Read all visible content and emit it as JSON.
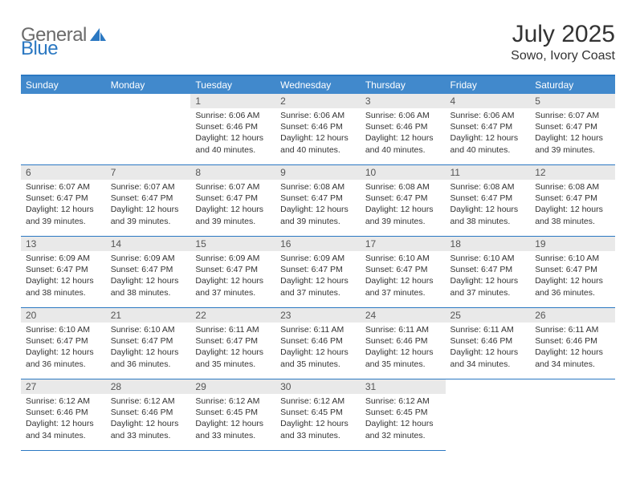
{
  "brand": {
    "part1": "General",
    "part2": "Blue"
  },
  "title": "July 2025",
  "location": "Sowo, Ivory Coast",
  "colors": {
    "accent": "#2b78c2",
    "header_bg": "#4189cc",
    "daynum_bg": "#e9e9e9",
    "text": "#333333"
  },
  "day_headers": [
    "Sunday",
    "Monday",
    "Tuesday",
    "Wednesday",
    "Thursday",
    "Friday",
    "Saturday"
  ],
  "weeks": [
    [
      null,
      null,
      {
        "n": "1",
        "sr": "Sunrise: 6:06 AM",
        "ss": "Sunset: 6:46 PM",
        "dl": "Daylight: 12 hours and 40 minutes."
      },
      {
        "n": "2",
        "sr": "Sunrise: 6:06 AM",
        "ss": "Sunset: 6:46 PM",
        "dl": "Daylight: 12 hours and 40 minutes."
      },
      {
        "n": "3",
        "sr": "Sunrise: 6:06 AM",
        "ss": "Sunset: 6:46 PM",
        "dl": "Daylight: 12 hours and 40 minutes."
      },
      {
        "n": "4",
        "sr": "Sunrise: 6:06 AM",
        "ss": "Sunset: 6:47 PM",
        "dl": "Daylight: 12 hours and 40 minutes."
      },
      {
        "n": "5",
        "sr": "Sunrise: 6:07 AM",
        "ss": "Sunset: 6:47 PM",
        "dl": "Daylight: 12 hours and 39 minutes."
      }
    ],
    [
      {
        "n": "6",
        "sr": "Sunrise: 6:07 AM",
        "ss": "Sunset: 6:47 PM",
        "dl": "Daylight: 12 hours and 39 minutes."
      },
      {
        "n": "7",
        "sr": "Sunrise: 6:07 AM",
        "ss": "Sunset: 6:47 PM",
        "dl": "Daylight: 12 hours and 39 minutes."
      },
      {
        "n": "8",
        "sr": "Sunrise: 6:07 AM",
        "ss": "Sunset: 6:47 PM",
        "dl": "Daylight: 12 hours and 39 minutes."
      },
      {
        "n": "9",
        "sr": "Sunrise: 6:08 AM",
        "ss": "Sunset: 6:47 PM",
        "dl": "Daylight: 12 hours and 39 minutes."
      },
      {
        "n": "10",
        "sr": "Sunrise: 6:08 AM",
        "ss": "Sunset: 6:47 PM",
        "dl": "Daylight: 12 hours and 39 minutes."
      },
      {
        "n": "11",
        "sr": "Sunrise: 6:08 AM",
        "ss": "Sunset: 6:47 PM",
        "dl": "Daylight: 12 hours and 38 minutes."
      },
      {
        "n": "12",
        "sr": "Sunrise: 6:08 AM",
        "ss": "Sunset: 6:47 PM",
        "dl": "Daylight: 12 hours and 38 minutes."
      }
    ],
    [
      {
        "n": "13",
        "sr": "Sunrise: 6:09 AM",
        "ss": "Sunset: 6:47 PM",
        "dl": "Daylight: 12 hours and 38 minutes."
      },
      {
        "n": "14",
        "sr": "Sunrise: 6:09 AM",
        "ss": "Sunset: 6:47 PM",
        "dl": "Daylight: 12 hours and 38 minutes."
      },
      {
        "n": "15",
        "sr": "Sunrise: 6:09 AM",
        "ss": "Sunset: 6:47 PM",
        "dl": "Daylight: 12 hours and 37 minutes."
      },
      {
        "n": "16",
        "sr": "Sunrise: 6:09 AM",
        "ss": "Sunset: 6:47 PM",
        "dl": "Daylight: 12 hours and 37 minutes."
      },
      {
        "n": "17",
        "sr": "Sunrise: 6:10 AM",
        "ss": "Sunset: 6:47 PM",
        "dl": "Daylight: 12 hours and 37 minutes."
      },
      {
        "n": "18",
        "sr": "Sunrise: 6:10 AM",
        "ss": "Sunset: 6:47 PM",
        "dl": "Daylight: 12 hours and 37 minutes."
      },
      {
        "n": "19",
        "sr": "Sunrise: 6:10 AM",
        "ss": "Sunset: 6:47 PM",
        "dl": "Daylight: 12 hours and 36 minutes."
      }
    ],
    [
      {
        "n": "20",
        "sr": "Sunrise: 6:10 AM",
        "ss": "Sunset: 6:47 PM",
        "dl": "Daylight: 12 hours and 36 minutes."
      },
      {
        "n": "21",
        "sr": "Sunrise: 6:10 AM",
        "ss": "Sunset: 6:47 PM",
        "dl": "Daylight: 12 hours and 36 minutes."
      },
      {
        "n": "22",
        "sr": "Sunrise: 6:11 AM",
        "ss": "Sunset: 6:47 PM",
        "dl": "Daylight: 12 hours and 35 minutes."
      },
      {
        "n": "23",
        "sr": "Sunrise: 6:11 AM",
        "ss": "Sunset: 6:46 PM",
        "dl": "Daylight: 12 hours and 35 minutes."
      },
      {
        "n": "24",
        "sr": "Sunrise: 6:11 AM",
        "ss": "Sunset: 6:46 PM",
        "dl": "Daylight: 12 hours and 35 minutes."
      },
      {
        "n": "25",
        "sr": "Sunrise: 6:11 AM",
        "ss": "Sunset: 6:46 PM",
        "dl": "Daylight: 12 hours and 34 minutes."
      },
      {
        "n": "26",
        "sr": "Sunrise: 6:11 AM",
        "ss": "Sunset: 6:46 PM",
        "dl": "Daylight: 12 hours and 34 minutes."
      }
    ],
    [
      {
        "n": "27",
        "sr": "Sunrise: 6:12 AM",
        "ss": "Sunset: 6:46 PM",
        "dl": "Daylight: 12 hours and 34 minutes."
      },
      {
        "n": "28",
        "sr": "Sunrise: 6:12 AM",
        "ss": "Sunset: 6:46 PM",
        "dl": "Daylight: 12 hours and 33 minutes."
      },
      {
        "n": "29",
        "sr": "Sunrise: 6:12 AM",
        "ss": "Sunset: 6:45 PM",
        "dl": "Daylight: 12 hours and 33 minutes."
      },
      {
        "n": "30",
        "sr": "Sunrise: 6:12 AM",
        "ss": "Sunset: 6:45 PM",
        "dl": "Daylight: 12 hours and 33 minutes."
      },
      {
        "n": "31",
        "sr": "Sunrise: 6:12 AM",
        "ss": "Sunset: 6:45 PM",
        "dl": "Daylight: 12 hours and 32 minutes."
      },
      null,
      null
    ]
  ]
}
